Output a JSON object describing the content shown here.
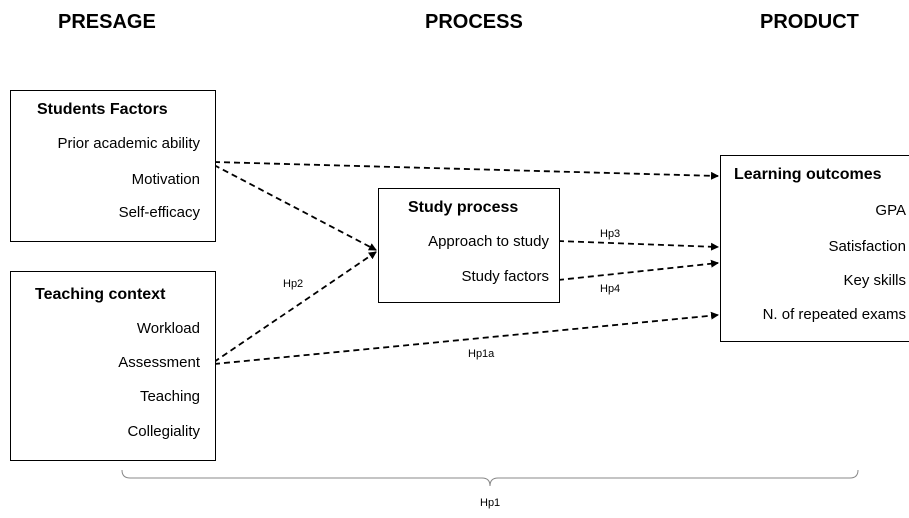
{
  "columns": {
    "presage": "PRESAGE",
    "process": "PROCESS",
    "product": "PRODUCT"
  },
  "students_factors": {
    "title": "Students Factors",
    "items": [
      "Prior academic ability",
      "Motivation",
      "Self-efficacy"
    ]
  },
  "teaching_context": {
    "title": "Teaching context",
    "items": [
      "Workload",
      "Assessment",
      "Teaching",
      "Collegiality"
    ]
  },
  "study_process": {
    "title": "Study process",
    "items": [
      "Approach to study",
      "Study factors"
    ]
  },
  "learning_outcomes": {
    "title": "Learning outcomes",
    "items": [
      "GPA",
      "Satisfaction",
      "Key skills",
      "N. of repeated exams"
    ]
  },
  "hypotheses": {
    "hp1": "Hp1",
    "hp1a": "Hp1a",
    "hp2": "Hp2",
    "hp3": "Hp3",
    "hp4": "Hp4"
  }
}
